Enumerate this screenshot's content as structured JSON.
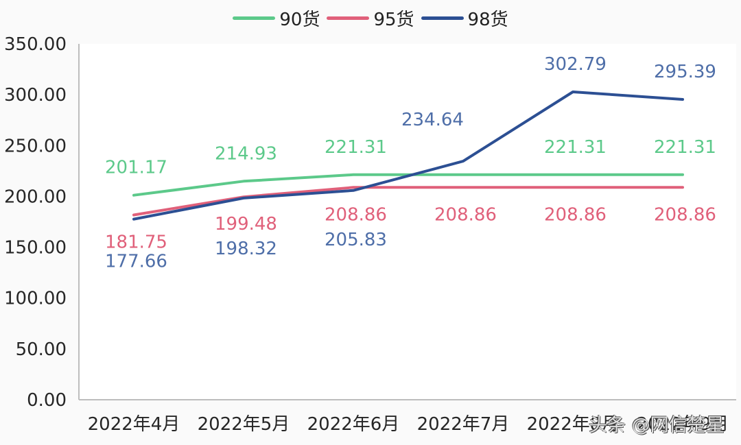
{
  "chart_data": {
    "type": "line",
    "title": "",
    "xlabel": "",
    "ylabel": "",
    "categories": [
      "2022年4月",
      "2022年5月",
      "2022年6月",
      "2022年7月",
      "2022年8月",
      "2022年9月"
    ],
    "series": [
      {
        "name": "90货",
        "color": "#5cc98a",
        "label_color": "#5cc98a",
        "values": [
          201.17,
          214.93,
          221.31,
          221.31,
          221.31,
          221.31
        ]
      },
      {
        "name": "95货",
        "color": "#e0607a",
        "label_color": "#e0607a",
        "values": [
          181.75,
          199.48,
          208.86,
          208.86,
          208.86,
          208.86
        ]
      },
      {
        "name": "98货",
        "color": "#2c4f93",
        "label_color": "#4e6ea8",
        "values": [
          177.66,
          198.32,
          205.83,
          234.64,
          302.79,
          295.39
        ]
      }
    ],
    "ylim": [
      0,
      350
    ],
    "yticks": [
      "0.00",
      "50.00",
      "100.00",
      "150.00",
      "200.00",
      "250.00",
      "300.00",
      "350.00"
    ],
    "grid": false,
    "legend_position": "top",
    "data_labels": true
  },
  "watermark": "头条 @网信楚星"
}
